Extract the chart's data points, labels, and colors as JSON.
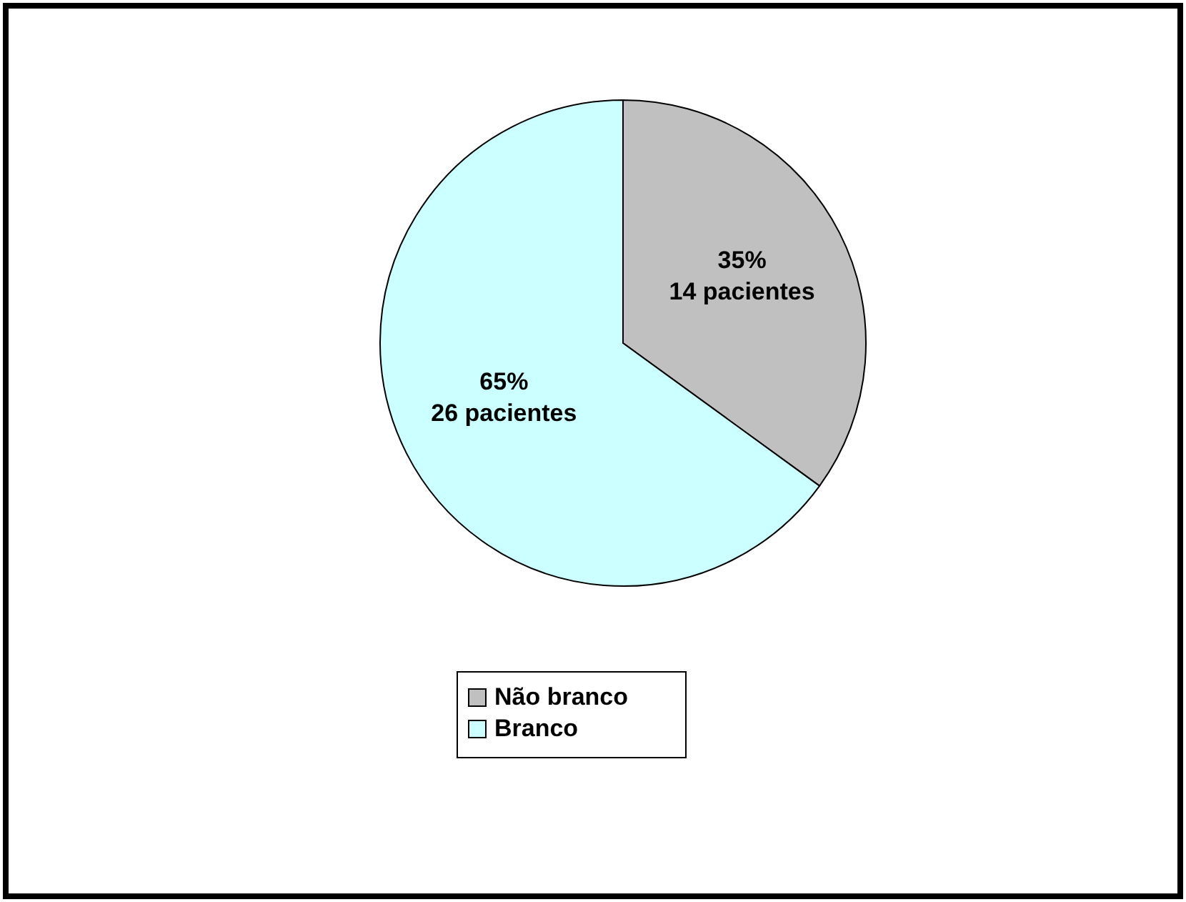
{
  "chart_data": {
    "type": "pie",
    "categories": [
      "Não branco",
      "Branco"
    ],
    "values": [
      14,
      26
    ],
    "colors": [
      "#c0c0c0",
      "#ccffff"
    ],
    "value_labels": [
      "35%\n14 pacientes",
      "65%\n26 pacientes"
    ],
    "legend": "bottom"
  }
}
